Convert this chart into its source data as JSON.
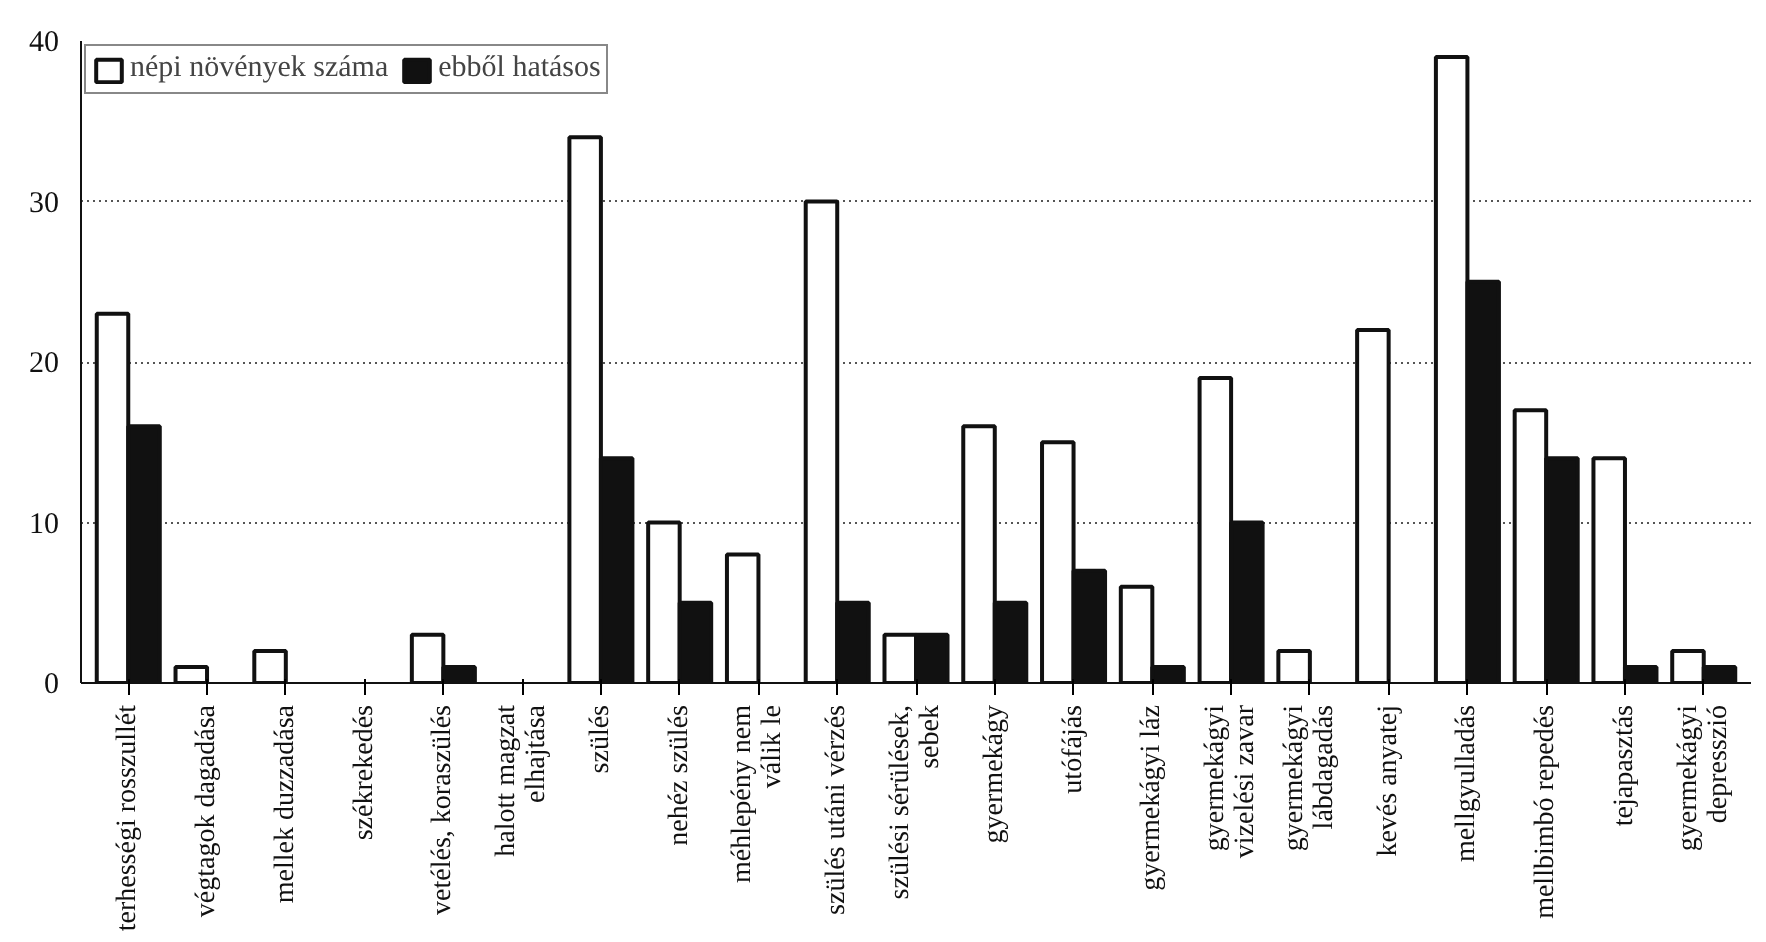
{
  "chart_data": {
    "type": "bar",
    "categories": [
      "terhességi rosszullét",
      "végtagok dagadása",
      "mellek duzzadása",
      "székrekedés",
      "vetélés, koraszülés",
      "halott magzat\nelhajtása",
      "szülés",
      "nehéz szülés",
      "méhlepény nem\nválik le",
      "szülés utáni vérzés",
      "szülési sérülések,\nsebek",
      "gyermekágy",
      "utófájás",
      "gyermekágyi láz",
      "gyermekágyi\nvizelési zavar",
      "gyermekágyi\nlábdagadás",
      "kevés anyatej",
      "mellgyulladás",
      "mellbimbó repedés",
      "tejapasztás",
      "gyermekágyi\ndepresszió"
    ],
    "series": [
      {
        "name": "népi növények száma",
        "color": "#ffffff",
        "values": [
          23,
          1,
          2,
          0,
          3,
          0,
          34,
          10,
          8,
          30,
          3,
          16,
          15,
          6,
          19,
          2,
          22,
          39,
          17,
          14,
          2
        ]
      },
      {
        "name": "ebből hatásos",
        "color": "#111111",
        "values": [
          16,
          0,
          0,
          0,
          1,
          0,
          14,
          5,
          0,
          5,
          3,
          5,
          7,
          1,
          10,
          0,
          0,
          25,
          14,
          1,
          1
        ]
      }
    ],
    "ylim": [
      0,
      40
    ],
    "yticks": [
      0,
      10,
      20,
      30,
      40
    ],
    "grid": "y",
    "legend": "top left"
  }
}
